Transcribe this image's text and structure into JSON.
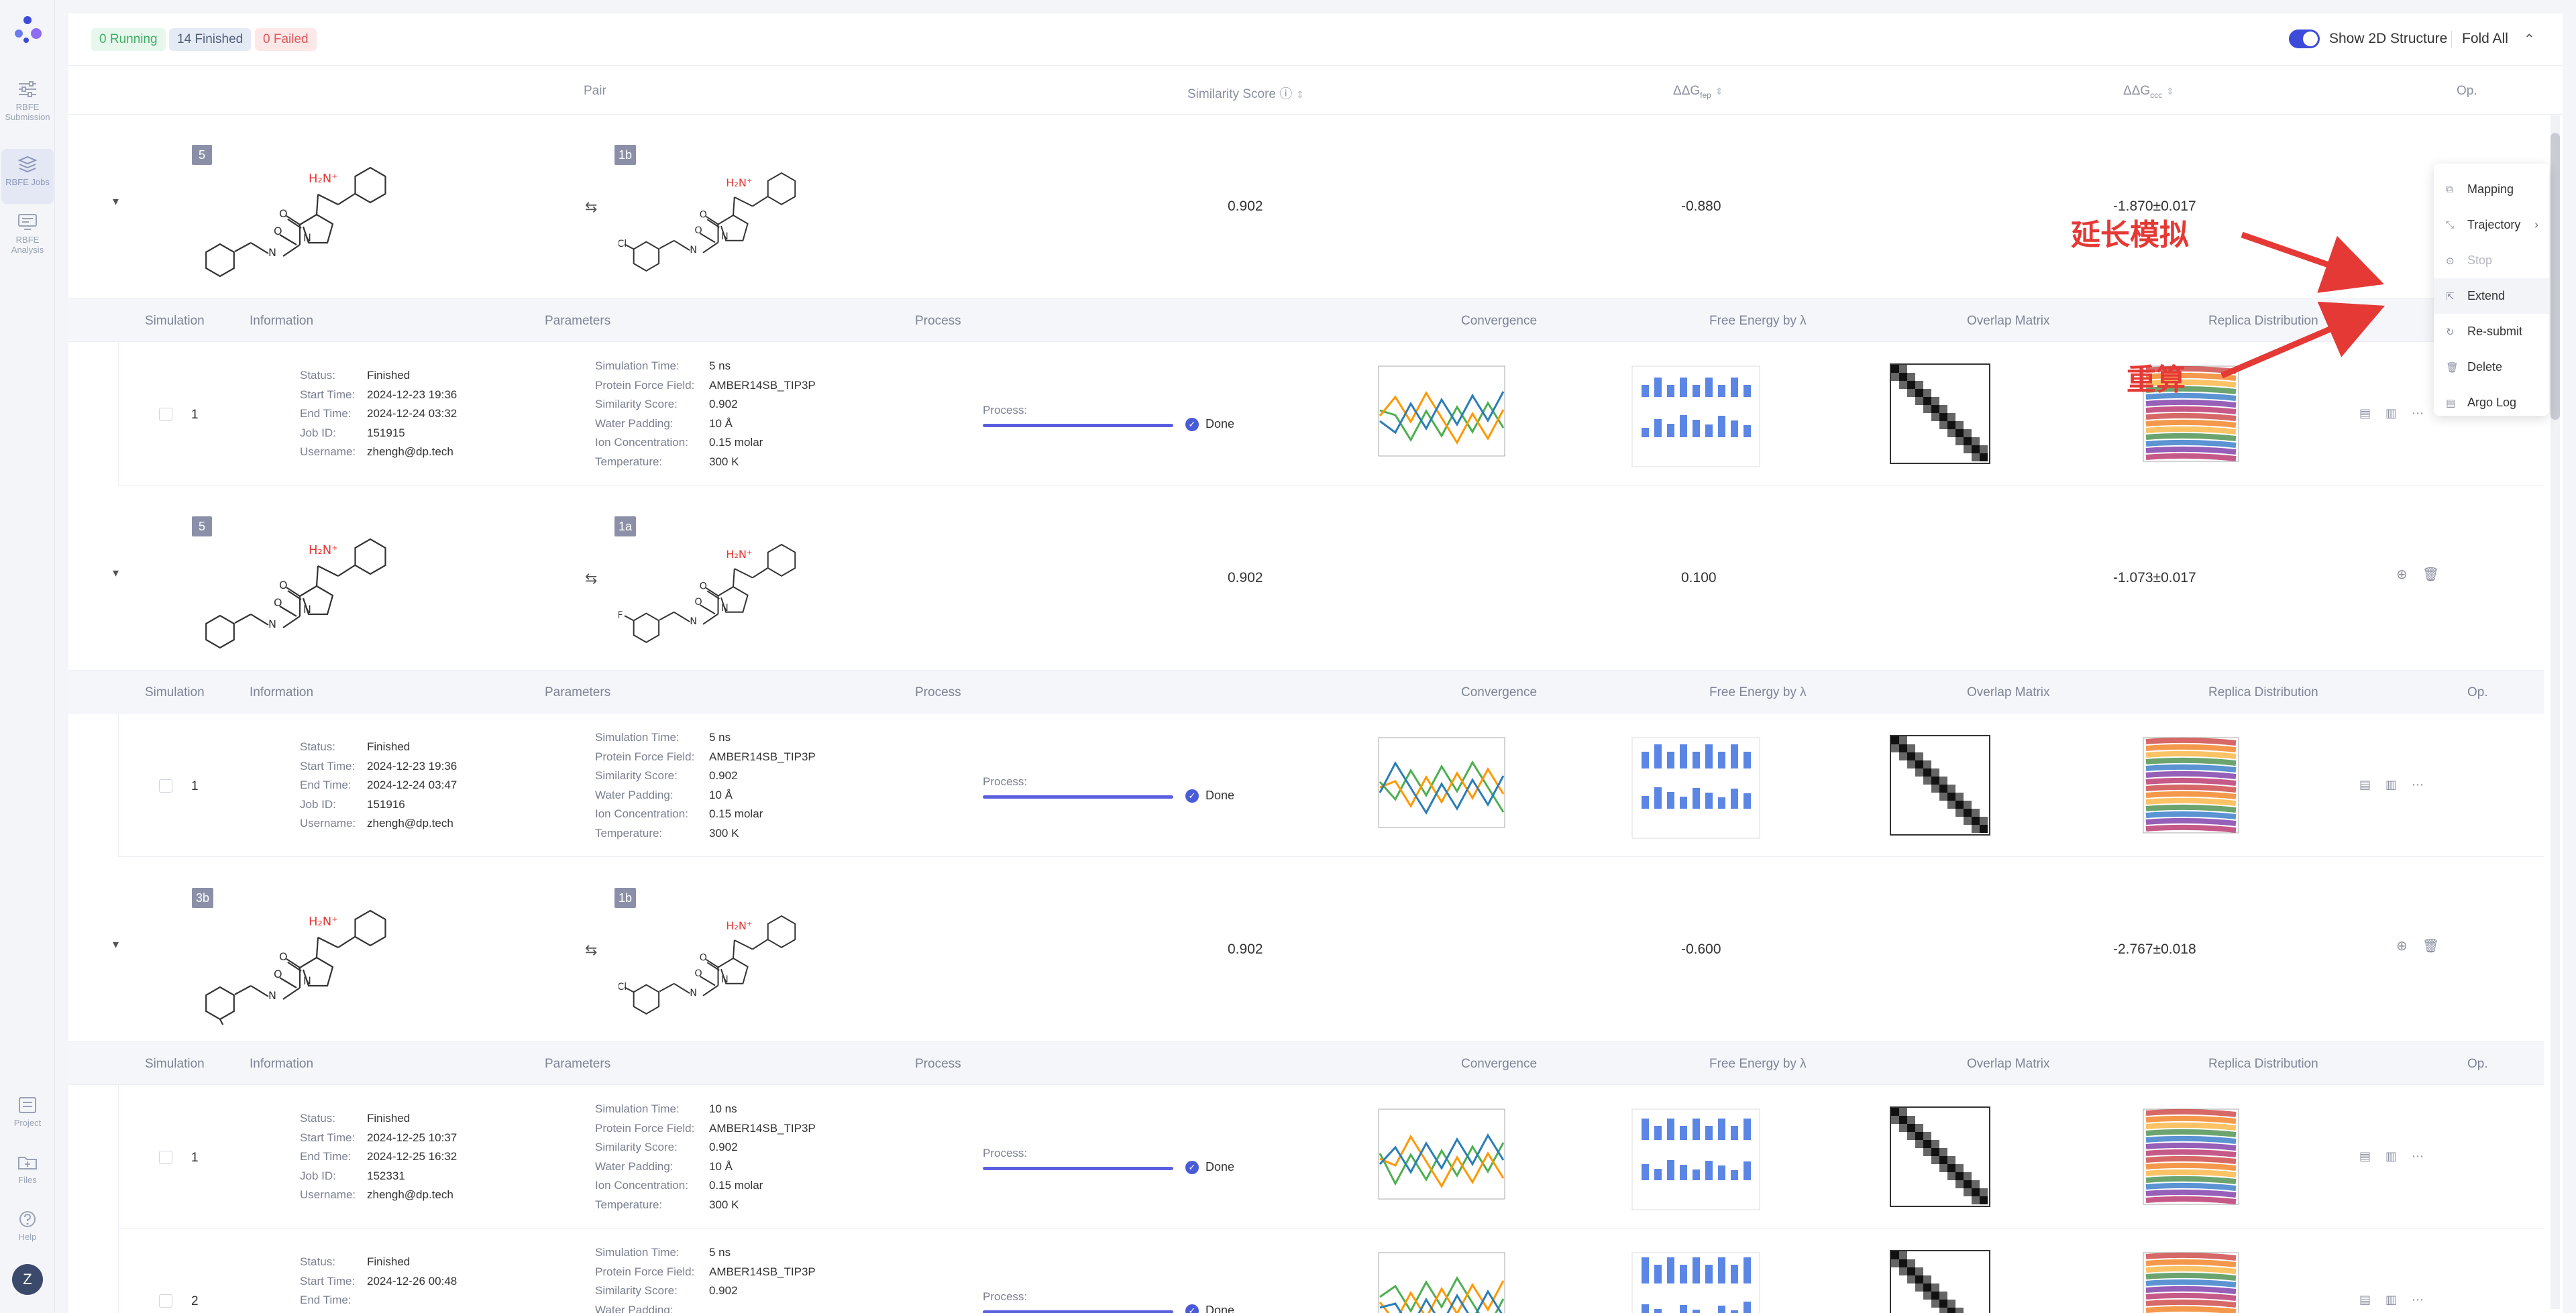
{
  "sidebar": {
    "items": [
      {
        "label": "RBFE Submission",
        "icon": "sliders-icon"
      },
      {
        "label": "RBFE Jobs",
        "icon": "layers-icon",
        "active": true
      },
      {
        "label": "RBFE Analysis",
        "icon": "monitor-icon"
      }
    ],
    "bottom": [
      {
        "label": "Project",
        "icon": "project-icon"
      },
      {
        "label": "Files",
        "icon": "folder-icon"
      },
      {
        "label": "Help",
        "icon": "help-icon"
      }
    ],
    "avatar": "Z"
  },
  "toolbar": {
    "running": "0 Running",
    "finished": "14 Finished",
    "failed": "0 Failed",
    "show2d": "Show 2D Structure",
    "fold_all": "Fold All"
  },
  "table_header": {
    "pair": "Pair",
    "similarity": "Similarity Score",
    "ddg_fep": "ΔΔG",
    "ddg_fep_sub": "fep",
    "ddg_exp": "ΔΔG",
    "ddg_exp_sub": "ccc",
    "op": "Op."
  },
  "sim_header": {
    "simulation": "Simulation",
    "information": "Information",
    "parameters": "Parameters",
    "process": "Process",
    "convergence": "Convergence",
    "free_energy": "Free Energy by λ",
    "overlap": "Overlap Matrix",
    "replica": "Replica Distribution",
    "op": "Op."
  },
  "labels": {
    "status": "Status:",
    "start": "Start Time:",
    "end": "End Time:",
    "job": "Job ID:",
    "user": "Username:",
    "sim_time": "Simulation Time:",
    "ff": "Protein Force Field:",
    "sim_score": "Similarity Score:",
    "padding": "Water Padding:",
    "ion": "Ion Concentration:",
    "temp": "Temperature:",
    "process": "Process:",
    "done": "Done"
  },
  "pairs": [
    {
      "a": "5",
      "b": "1b",
      "similarity": "0.902",
      "ddg_fep": "-0.880",
      "ddg_exp": "-1.870±0.017",
      "a_sub": "benzyl",
      "b_sub": "Cl"
    },
    {
      "a": "5",
      "b": "1a",
      "similarity": "0.902",
      "ddg_fep": "0.100",
      "ddg_exp": "-1.073±0.017",
      "a_sub": "benzyl",
      "b_sub": "F"
    },
    {
      "a": "3b",
      "b": "1b",
      "similarity": "0.902",
      "ddg_fep": "-0.600",
      "ddg_exp": "-2.767±0.018",
      "a_sub": "ethyl",
      "b_sub": "Cl"
    }
  ],
  "mol_labels": {
    "amine": "H₂N⁺",
    "o": "O",
    "n": "N",
    "h": "H",
    "nh": "N\nH"
  },
  "sims": [
    {
      "no": "1",
      "status": "Finished",
      "start": "2024-12-23 19:36",
      "end": "2024-12-24 03:32",
      "job": "151915",
      "user": "zhengh@dp.tech",
      "sim_time": "5 ns",
      "ff": "AMBER14SB_TIP3P",
      "sim_score": "0.902",
      "padding": "10 Å",
      "ion": "0.15 molar",
      "temp": "300 K"
    },
    {
      "no": "1",
      "status": "Finished",
      "start": "2024-12-23 19:36",
      "end": "2024-12-24 03:47",
      "job": "151916",
      "user": "zhengh@dp.tech",
      "sim_time": "5 ns",
      "ff": "AMBER14SB_TIP3P",
      "sim_score": "0.902",
      "padding": "10 Å",
      "ion": "0.15 molar",
      "temp": "300 K"
    },
    {
      "no": "1",
      "status": "Finished",
      "start": "2024-12-25 10:37",
      "end": "2024-12-25 16:32",
      "job": "152331",
      "user": "zhengh@dp.tech",
      "sim_time": "10 ns",
      "ff": "AMBER14SB_TIP3P",
      "sim_score": "0.902",
      "padding": "10 Å",
      "ion": "0.15 molar",
      "temp": "300 K"
    },
    {
      "no": "2",
      "status": "Finished",
      "start": "2024-12-26 00:48",
      "end": "",
      "job": "",
      "user": "",
      "sim_time": "5 ns",
      "ff": "AMBER14SB_TIP3P",
      "sim_score": "0.902",
      "padding": "",
      "ion": "",
      "temp": ""
    }
  ],
  "menu": {
    "items": [
      {
        "label": "Mapping",
        "icon": "mapping-icon"
      },
      {
        "label": "Trajectory",
        "icon": "trajectory-icon"
      },
      {
        "label": "Stop",
        "icon": "stop-icon",
        "disabled": true
      },
      {
        "label": "Extend",
        "icon": "extend-icon",
        "highlight": true
      },
      {
        "label": "Re-submit",
        "icon": "resubmit-icon"
      },
      {
        "label": "Delete",
        "icon": "trash-icon"
      },
      {
        "label": "Argo Log",
        "icon": "log-icon"
      }
    ]
  },
  "annotations": {
    "extend": "延长模拟",
    "resubmit": "重算",
    "color": "#e53935"
  }
}
